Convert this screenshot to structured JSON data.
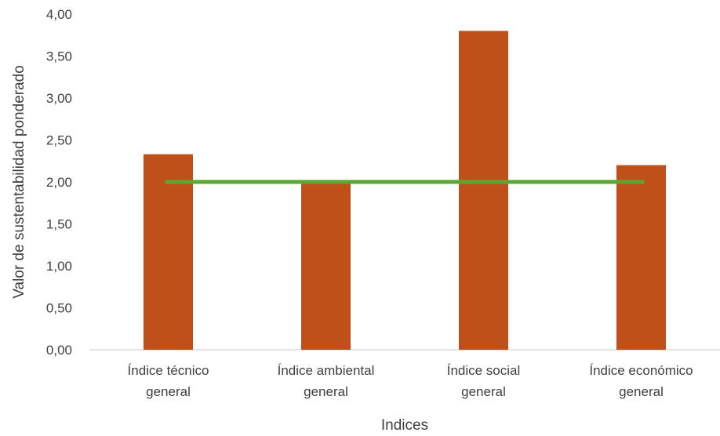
{
  "chart_data": {
    "type": "bar",
    "categories": [
      [
        "Índice técnico",
        "general"
      ],
      [
        "Índice ambiental",
        "general"
      ],
      [
        "Índice social",
        "general"
      ],
      [
        "Índice económico",
        "general"
      ]
    ],
    "values": [
      2.33,
      2.01,
      3.8,
      2.2
    ],
    "reference_line": {
      "value": 2.0,
      "color": "#5aa832"
    },
    "bar_color": "#c0501a",
    "axis_color": "#d9d9d9",
    "xlabel": "Indices",
    "ylabel": "Valor de sustentabilidad ponderado",
    "ylim": [
      0,
      4
    ],
    "yticks": [
      "0,00",
      "0,50",
      "1,00",
      "1,50",
      "2,00",
      "2,50",
      "3,00",
      "3,50",
      "4,00"
    ],
    "grid": false,
    "legend": "none"
  }
}
